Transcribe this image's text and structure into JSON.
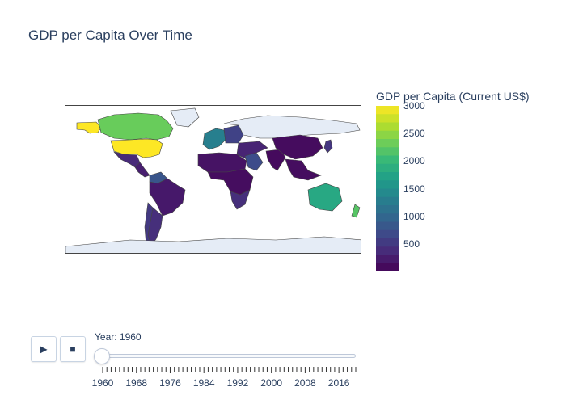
{
  "chart_data": {
    "type": "choropleth",
    "title": "GDP per Capita Over Time",
    "colorbar": {
      "title": "GDP per Capita (Current US$)",
      "colorscale": "Viridis",
      "range": [
        0,
        3000
      ],
      "tickvals": [
        500,
        1000,
        1500,
        2000,
        2500,
        3000
      ],
      "ticktext": [
        "500",
        "1000",
        "1500",
        "2000",
        "2500",
        "3000"
      ]
    },
    "frame_year": 1960,
    "countries": [
      {
        "name": "United States",
        "value": 3000
      },
      {
        "name": "Canada",
        "value": 2300
      },
      {
        "name": "Alaska",
        "value": 3000
      },
      {
        "name": "Greenland",
        "value": null
      },
      {
        "name": "Mexico",
        "value": 350
      },
      {
        "name": "Central America",
        "value": 250
      },
      {
        "name": "Venezuela",
        "value": 800
      },
      {
        "name": "Brazil",
        "value": 200
      },
      {
        "name": "Argentina",
        "value": 400
      },
      {
        "name": "Chile",
        "value": 500
      },
      {
        "name": "Western Europe",
        "value": 1300
      },
      {
        "name": "Eastern Europe",
        "value": 600
      },
      {
        "name": "Russia",
        "value": null
      },
      {
        "name": "North Africa",
        "value": 150
      },
      {
        "name": "Sub-Saharan Africa",
        "value": 100
      },
      {
        "name": "South Africa",
        "value": 400
      },
      {
        "name": "Middle East",
        "value": 300
      },
      {
        "name": "Saudi Arabia",
        "value": 700
      },
      {
        "name": "India",
        "value": 80
      },
      {
        "name": "China",
        "value": 90
      },
      {
        "name": "Japan",
        "value": 470
      },
      {
        "name": "Southeast Asia",
        "value": 100
      },
      {
        "name": "Australia",
        "value": 1800
      },
      {
        "name": "New Zealand",
        "value": 2200
      },
      {
        "name": "Antarctica",
        "value": null
      }
    ]
  },
  "slider": {
    "current_prefix": "Year: ",
    "current_value": "1960",
    "current_label": "Year: 1960",
    "tick_labels": [
      "1960",
      "1968",
      "1976",
      "1984",
      "1992",
      "2000",
      "2008",
      "2016"
    ]
  },
  "controls": {
    "play_icon": "▶",
    "stop_icon": "■"
  }
}
